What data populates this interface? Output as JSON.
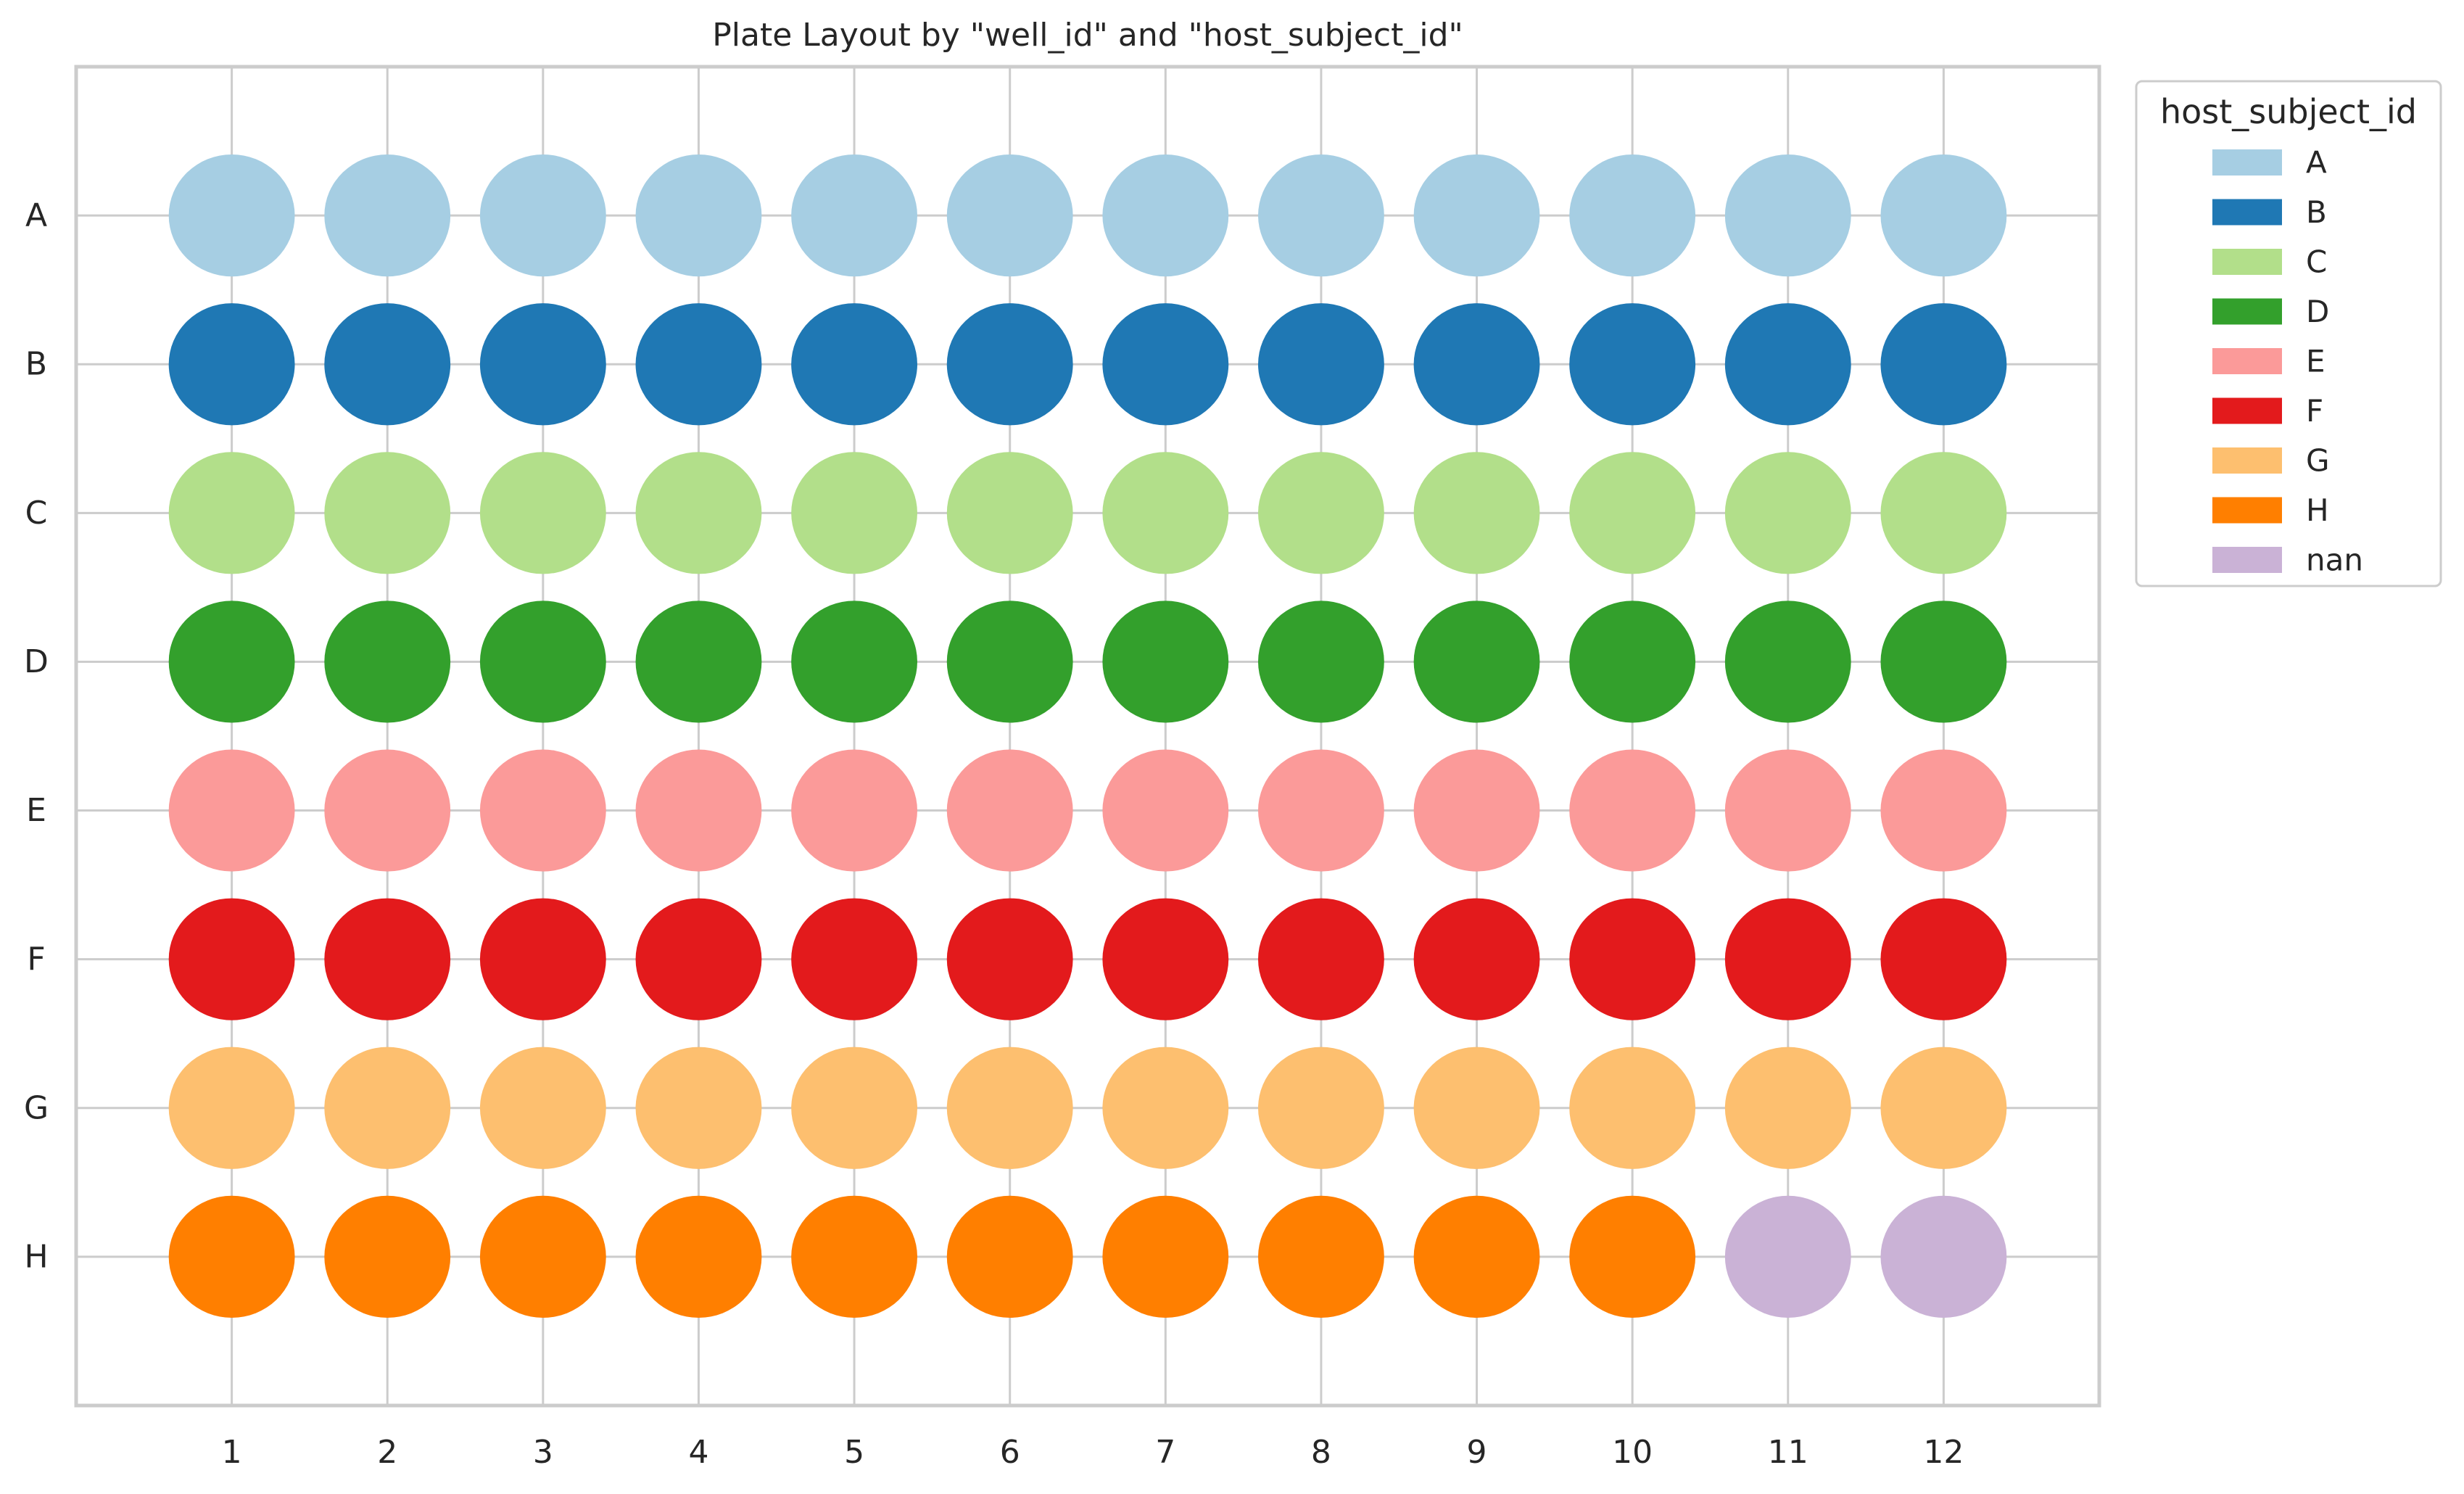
{
  "chart_data": {
    "type": "scatter",
    "title": "Plate Layout by \"well_id\" and \"host_subject_id\"",
    "xlabel": "",
    "ylabel": "",
    "x_categories": [
      "1",
      "2",
      "3",
      "4",
      "5",
      "6",
      "7",
      "8",
      "9",
      "10",
      "11",
      "12"
    ],
    "y_categories": [
      "A",
      "B",
      "C",
      "D",
      "E",
      "F",
      "G",
      "H"
    ],
    "grid": true,
    "legend": {
      "title": "host_subject_id",
      "placement": "outside-top-right",
      "entries": [
        {
          "label": "A",
          "color": "#a6cee3"
        },
        {
          "label": "B",
          "color": "#1f78b4"
        },
        {
          "label": "C",
          "color": "#b2df8a"
        },
        {
          "label": "D",
          "color": "#33a02c"
        },
        {
          "label": "E",
          "color": "#fb9a99"
        },
        {
          "label": "F",
          "color": "#e31a1c"
        },
        {
          "label": "G",
          "color": "#fdbf6f"
        },
        {
          "label": "H",
          "color": "#ff7f00"
        },
        {
          "label": "nan",
          "color": "#cab2d6"
        }
      ]
    },
    "wells": [
      {
        "row": "A",
        "cols": [
          "A",
          "A",
          "A",
          "A",
          "A",
          "A",
          "A",
          "A",
          "A",
          "A",
          "A",
          "A"
        ]
      },
      {
        "row": "B",
        "cols": [
          "B",
          "B",
          "B",
          "B",
          "B",
          "B",
          "B",
          "B",
          "B",
          "B",
          "B",
          "B"
        ]
      },
      {
        "row": "C",
        "cols": [
          "C",
          "C",
          "C",
          "C",
          "C",
          "C",
          "C",
          "C",
          "C",
          "C",
          "C",
          "C"
        ]
      },
      {
        "row": "D",
        "cols": [
          "D",
          "D",
          "D",
          "D",
          "D",
          "D",
          "D",
          "D",
          "D",
          "D",
          "D",
          "D"
        ]
      },
      {
        "row": "E",
        "cols": [
          "E",
          "E",
          "E",
          "E",
          "E",
          "E",
          "E",
          "E",
          "E",
          "E",
          "E",
          "E"
        ]
      },
      {
        "row": "F",
        "cols": [
          "F",
          "F",
          "F",
          "F",
          "F",
          "F",
          "F",
          "F",
          "F",
          "F",
          "F",
          "F"
        ]
      },
      {
        "row": "G",
        "cols": [
          "G",
          "G",
          "G",
          "G",
          "G",
          "G",
          "G",
          "G",
          "G",
          "G",
          "G",
          "G"
        ]
      },
      {
        "row": "H",
        "cols": [
          "H",
          "H",
          "H",
          "H",
          "H",
          "H",
          "H",
          "H",
          "H",
          "H",
          "nan",
          "nan"
        ]
      }
    ]
  }
}
